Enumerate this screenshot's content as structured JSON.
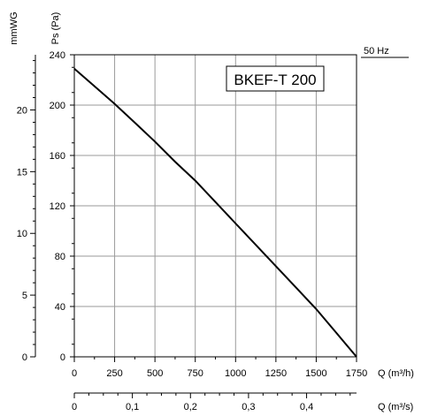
{
  "chart_data": {
    "type": "line",
    "frequency_label": "50 Hz",
    "model_label": "BKEF-T 200",
    "ylabel_pa": "Ps (Pa)",
    "ylabel_mmwg": "mmWG",
    "xlabel_m3h": "Q (m³/h)",
    "xlabel_m3s": "Q (m³/s)",
    "x_m3h": {
      "range": [
        0,
        1750
      ],
      "ticks": [
        0,
        250,
        500,
        750,
        1000,
        1250,
        1500,
        1750
      ],
      "tick_labels": [
        "0",
        "250",
        "500",
        "750",
        "1000",
        "1250",
        "1500",
        "1750"
      ]
    },
    "x_m3s": {
      "range": [
        0,
        0.486
      ],
      "ticks": [
        0,
        0.1,
        0.2,
        0.3,
        0.4
      ],
      "tick_labels": [
        "0",
        "0,1",
        "0,2",
        "0,3",
        "0,4"
      ]
    },
    "y_pa": {
      "range": [
        0,
        240
      ],
      "ticks": [
        0,
        40,
        80,
        120,
        160,
        200,
        240
      ],
      "tick_labels": [
        "0",
        "40",
        "80",
        "120",
        "160",
        "200",
        "240"
      ]
    },
    "y_mmwg": {
      "range": [
        0,
        24.47
      ],
      "ticks": [
        0,
        5,
        10,
        15,
        20
      ],
      "tick_labels": [
        "0",
        "5",
        "10",
        "15",
        "20"
      ]
    },
    "grid": true,
    "series": [
      {
        "x": [
          0,
          125,
          250,
          375,
          500,
          625,
          750,
          875,
          1000,
          1125,
          1250,
          1375,
          1500,
          1625,
          1750
        ],
        "y": [
          229,
          215,
          201,
          186,
          171,
          155,
          140,
          123,
          106,
          89,
          72,
          55,
          38,
          19,
          0
        ]
      }
    ]
  }
}
